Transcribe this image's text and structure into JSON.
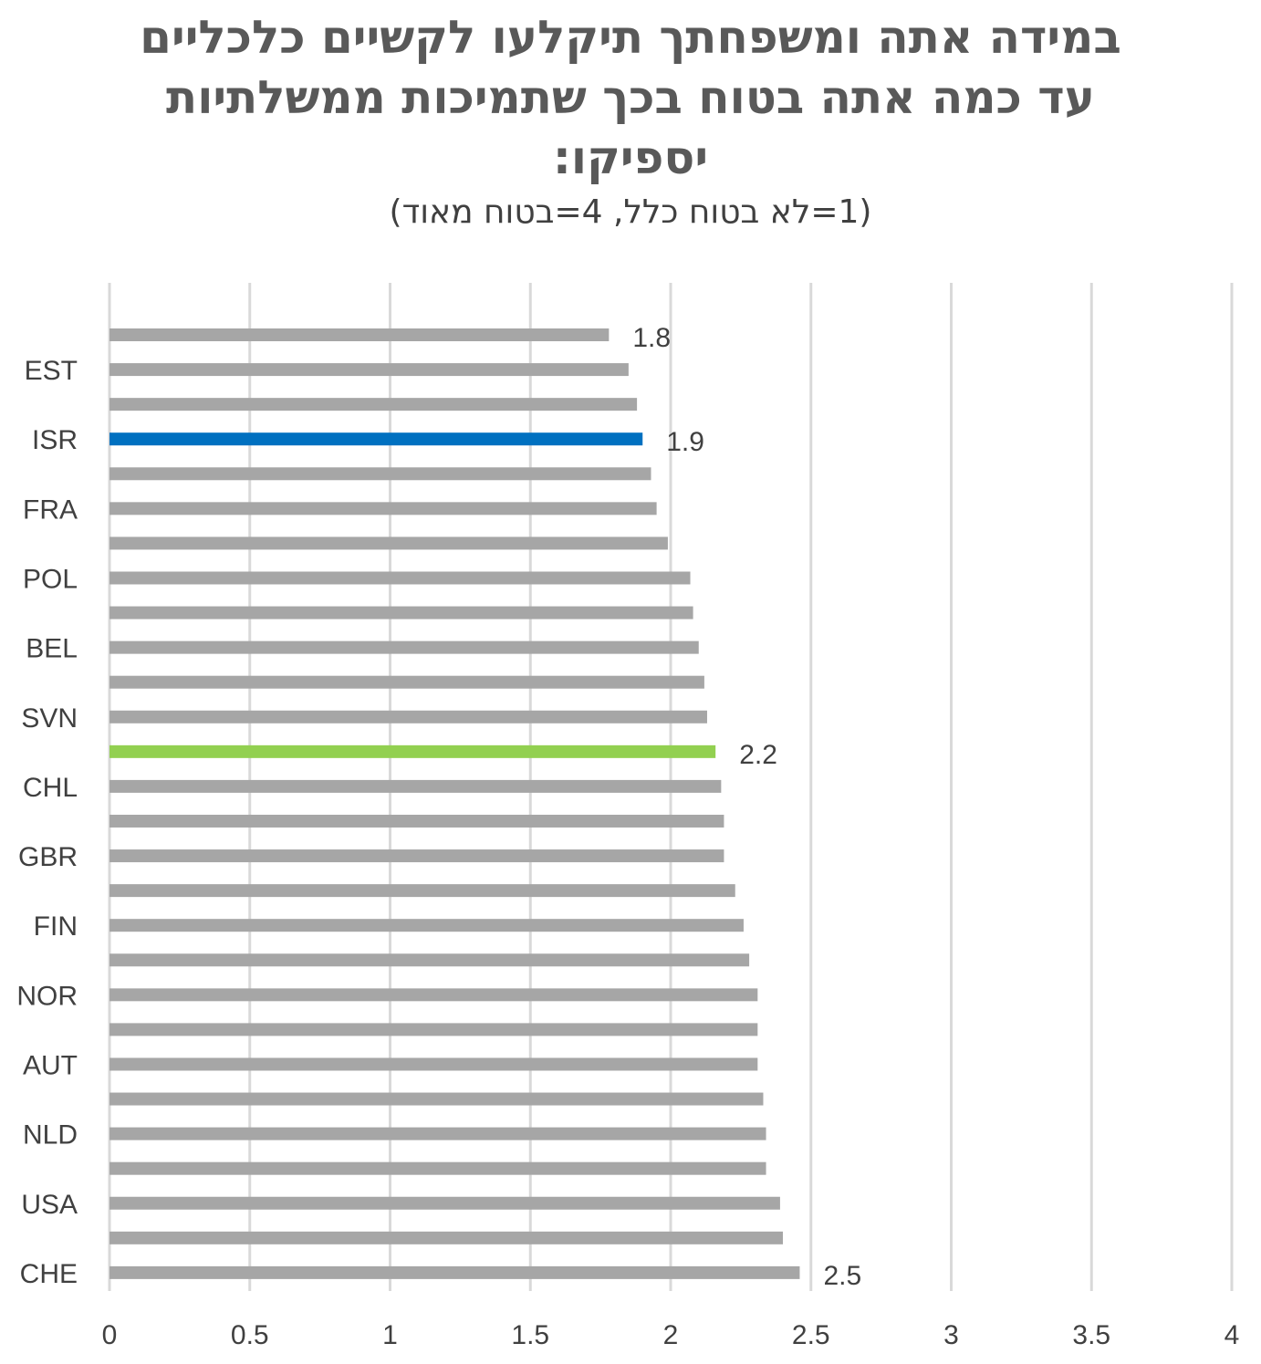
{
  "chart_data": {
    "type": "bar",
    "orientation": "horizontal",
    "title_lines": [
      "במידה אתה ומשפחתך תיקלעו לקשיים כלכליים",
      "עד כמה אתה בטוח בכך שתמיכות ממשלתיות",
      "יספיקו:"
    ],
    "subtitle": "(1=לא בטוח כלל, 4=בטוח מאוד)",
    "xlim": [
      0,
      4
    ],
    "xticks": [
      "0",
      "0.5",
      "1",
      "1.5",
      "2",
      "2.5",
      "3",
      "3.5",
      "4"
    ],
    "grid": true,
    "colors": {
      "default": "#a6a6a6",
      "israel": "#0070c0",
      "average": "#92d050"
    },
    "bars": [
      {
        "category": "",
        "value": 1.78,
        "color": "default",
        "data_label": "1.8"
      },
      {
        "category": "EST",
        "value": 1.85,
        "color": "default",
        "data_label": ""
      },
      {
        "category": "",
        "value": 1.88,
        "color": "default",
        "data_label": ""
      },
      {
        "category": "ISR",
        "value": 1.9,
        "color": "israel",
        "data_label": "1.9"
      },
      {
        "category": "",
        "value": 1.93,
        "color": "default",
        "data_label": ""
      },
      {
        "category": "FRA",
        "value": 1.95,
        "color": "default",
        "data_label": ""
      },
      {
        "category": "",
        "value": 1.99,
        "color": "default",
        "data_label": ""
      },
      {
        "category": "POL",
        "value": 2.07,
        "color": "default",
        "data_label": ""
      },
      {
        "category": "",
        "value": 2.08,
        "color": "default",
        "data_label": ""
      },
      {
        "category": "BEL",
        "value": 2.1,
        "color": "default",
        "data_label": ""
      },
      {
        "category": "",
        "value": 2.12,
        "color": "default",
        "data_label": ""
      },
      {
        "category": "SVN",
        "value": 2.13,
        "color": "default",
        "data_label": ""
      },
      {
        "category": "",
        "value": 2.16,
        "color": "average",
        "data_label": "2.2"
      },
      {
        "category": "CHL",
        "value": 2.18,
        "color": "default",
        "data_label": ""
      },
      {
        "category": "",
        "value": 2.19,
        "color": "default",
        "data_label": ""
      },
      {
        "category": "GBR",
        "value": 2.19,
        "color": "default",
        "data_label": ""
      },
      {
        "category": "",
        "value": 2.23,
        "color": "default",
        "data_label": ""
      },
      {
        "category": "FIN",
        "value": 2.26,
        "color": "default",
        "data_label": ""
      },
      {
        "category": "",
        "value": 2.28,
        "color": "default",
        "data_label": ""
      },
      {
        "category": "NOR",
        "value": 2.31,
        "color": "default",
        "data_label": ""
      },
      {
        "category": "",
        "value": 2.31,
        "color": "default",
        "data_label": ""
      },
      {
        "category": "AUT",
        "value": 2.31,
        "color": "default",
        "data_label": ""
      },
      {
        "category": "",
        "value": 2.33,
        "color": "default",
        "data_label": ""
      },
      {
        "category": "NLD",
        "value": 2.34,
        "color": "default",
        "data_label": ""
      },
      {
        "category": "",
        "value": 2.34,
        "color": "default",
        "data_label": ""
      },
      {
        "category": "USA",
        "value": 2.39,
        "color": "default",
        "data_label": ""
      },
      {
        "category": "",
        "value": 2.4,
        "color": "default",
        "data_label": ""
      },
      {
        "category": "CHE",
        "value": 2.46,
        "color": "default",
        "data_label": "2.5"
      }
    ]
  }
}
